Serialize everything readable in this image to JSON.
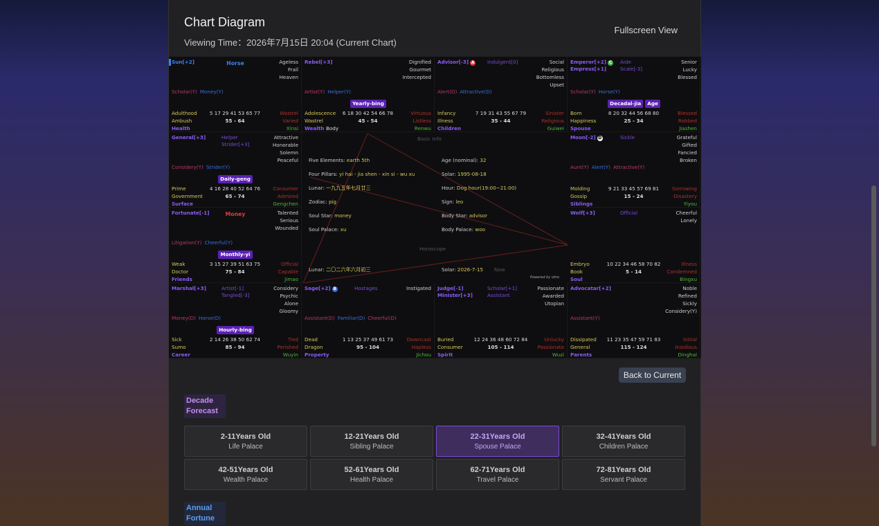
{
  "header": {
    "title": "Chart Diagram",
    "subtitle": "Viewing Time：2026年7月15日 20:04 (Current Chart)",
    "action": "Fullscreen View"
  },
  "chart": {
    "cells": [
      {
        "major": [
          "Sun[+2]"
        ],
        "center": "Horse",
        "adjectives": [
          "Ageless",
          "Frail",
          "Heaven"
        ],
        "yearly": [
          "Scholar(Y)",
          "Money(Y)"
        ],
        "stage": "Adulthood",
        "ages": "5 17 29 41 53 65 77",
        "stage_state": "Wastrel",
        "name": "Ambush",
        "range": "55 - 64",
        "state": "Varied",
        "palace": "Health",
        "stem": "Xinsi"
      },
      {
        "major": [
          "Rebel[+3]"
        ],
        "adjectives": [
          "Dignified",
          "Gourmet",
          "Intercepted"
        ],
        "yearly": [
          "Artist(Y)",
          "Helper(Y)"
        ],
        "tags": [
          "Yearly-bing"
        ],
        "stage": "Adolescence",
        "ages": "6 18 30 42 54 66 78",
        "stage_state": "Virtuous",
        "name": "Wastrel",
        "range": "45 - 54",
        "state": "Listless",
        "palace": "Wealth",
        "extra": "Body",
        "stem": "Renwu"
      },
      {
        "major": [
          {
            "name": "Advisor[-3]",
            "badge": "A"
          }
        ],
        "minor": [
          "Indulgent[0]"
        ],
        "adjectives": [
          "Social",
          "Religious",
          "Bottomless",
          "Upset"
        ],
        "yearly": [
          "Alert(D)",
          "Attractive(D)"
        ],
        "stage": "Infancy",
        "ages": "7 19 31 43 55 67 79",
        "stage_state": "Sinister",
        "name": "Illness",
        "range": "35 - 44",
        "state": "Religious",
        "palace": "Children",
        "stem": "Guiwei"
      },
      {
        "major": [
          {
            "name": "Emperor[+2]",
            "badge": "C"
          },
          "Empress[+1]"
        ],
        "minor": [
          "Aide",
          "Scale[-3]"
        ],
        "adjectives": [
          "Senior",
          "Lucky",
          "Blessed"
        ],
        "yearly": [
          "Scholar(Y)",
          "Horse(Y)"
        ],
        "tags": [
          "Decadal-jia",
          "Age"
        ],
        "stage": "Born",
        "ages": "8 20 32 44 56 68 80",
        "stage_state": "Blessed",
        "name": "Happiness",
        "range": "25 - 34",
        "state": "Robbed",
        "palace": "Spouse",
        "stem": "Jiashen"
      },
      {
        "major": [
          "General[+3]"
        ],
        "minor": [
          "Helper",
          "Strider[+3]"
        ],
        "adjectives": [
          "Attractive",
          "Honorable",
          "Solemn",
          "Peaceful"
        ],
        "yearly": [
          "Considery(Y)",
          "Strider(Y)"
        ],
        "tags": [
          "Daily-geng"
        ],
        "stage": "Prime",
        "ages": "4 16 28 40 52 64 76",
        "stage_state": "Consumer",
        "name": "Government",
        "range": "65 - 74",
        "state": "Admired",
        "palace": "Surface",
        "stem": "Gengchen"
      },
      {
        "major": [
          {
            "name": "Moon[-2]",
            "badge": "D"
          }
        ],
        "minor": [
          "Sickle"
        ],
        "adjectives": [
          "Grateful",
          "Gifted",
          "Fancied",
          "Broken"
        ],
        "yearly": [
          "Aunt(Y)",
          "Alert(Y)",
          "Attractive(Y)"
        ],
        "stage": "Molding",
        "ages": "9 21 33 45 57 69 81",
        "stage_state": "Sorrowing",
        "name": "Gossip",
        "range": "15 - 24",
        "state": "Disastery",
        "palace": "Siblings",
        "stem": "Yiyou"
      },
      {
        "major": [
          "Fortunate[-1]"
        ],
        "center": "Money",
        "adjectives": [
          "Talented",
          "Serious",
          "Wounded"
        ],
        "yearly": [
          "Litigation(Y)",
          "Cheerful(Y)"
        ],
        "tags": [
          "Monthly-yi"
        ],
        "stage": "Weak",
        "ages": "3 15 27 39 51 63 75",
        "stage_state": "Official",
        "name": "Doctor",
        "range": "75 - 84",
        "state": "Capable",
        "palace": "Friends",
        "stem": "Jimao"
      },
      {
        "major": [
          "Wolf[+3]"
        ],
        "minor": [
          "Official"
        ],
        "adjectives": [
          "Cheerful",
          "Lonely"
        ],
        "stage": "Embryo",
        "ages": "10 22 34 46 58 70 82",
        "stage_state": "Illness",
        "name": "Book",
        "range": "5 - 14",
        "state": "Condemned",
        "palace": "Soul",
        "stem": "Bingxu"
      },
      {
        "major": [
          "Marshal[+3]"
        ],
        "minor": [
          "Artist[-1]",
          "Tangled[-3]"
        ],
        "adjectives": [
          "Considery",
          "Psychic",
          "Alone",
          "Gloomy"
        ],
        "yearly": [
          "Money(D)",
          "Horse(D)"
        ],
        "tags": [
          "Hourly-bing"
        ],
        "stage": "Sick",
        "ages": "2 14 26 38 50 62 74",
        "stage_state": "Tied",
        "name": "Sumo",
        "range": "85 - 94",
        "state": "Perished",
        "palace": "Career",
        "stem": "Wuyin"
      },
      {
        "major": [
          {
            "name": "Sage[+2]",
            "badge": "B"
          }
        ],
        "minor": [
          "Hostages"
        ],
        "adjectives": [
          "Instigated"
        ],
        "yearly": [
          "Assistant(D)",
          "Familiar(D)",
          "Cheerful(D)"
        ],
        "stage": "Dead",
        "ages": "1 13 25 37 49 61 73",
        "stage_state": "Downcast",
        "name": "Dragon",
        "range": "95 - 104",
        "state": "Hapless",
        "palace": "Property",
        "stem": "Jichou"
      },
      {
        "major": [
          "Judge[-1]",
          "Minister[+3]"
        ],
        "minor": [
          "Scholar[+1]",
          "Assistant"
        ],
        "adjectives": [
          "Passionate",
          "Awarded",
          "Utopian"
        ],
        "stage": "Buried",
        "ages": "12 24 36 48 60 72 84",
        "stage_state": "Unlucky",
        "name": "Consumer",
        "range": "105 - 114",
        "state": "Passionate",
        "palace": "Spirit",
        "stem": "Wuzi"
      },
      {
        "major": [
          "Advocatar[+2]"
        ],
        "adjectives": [
          "Noble",
          "Refined",
          "Sickly",
          "Considery(Y)"
        ],
        "yearly": [
          "Assistant(Y)"
        ],
        "stage": "Dissipated",
        "ages": "11 23 35 47 59 71 83",
        "stage_state": "Initial",
        "name": "General",
        "range": "115 - 124",
        "state": "Insidious",
        "palace": "Parents",
        "stem": "Dinghai"
      }
    ],
    "center": {
      "title": "Basic Info",
      "info": [
        {
          "label": "Five Elements:",
          "value": "earth 5th"
        },
        {
          "label": "Age (nominal):",
          "value": "32"
        },
        {
          "label": "Four Pillars:",
          "value": "yi hai - jia shen - xin si - wu xu"
        },
        {
          "label": "Solar:",
          "value": "1995-08-18"
        },
        {
          "label": "Lunar:",
          "value": "一九九五年七月廿三"
        },
        {
          "label": "Hour:",
          "value": "Dog hour(19:00~21:00)"
        },
        {
          "label": "Zodiac:",
          "value": "pig"
        },
        {
          "label": "Sign:",
          "value": "leo"
        },
        {
          "label": "Soul Star:",
          "value": "money"
        },
        {
          "label": "Body Star:",
          "value": "advisor"
        },
        {
          "label": "Soul Palace:",
          "value": "xu"
        },
        {
          "label": "Body Palace:",
          "value": "woo"
        }
      ],
      "horoscope": "Horoscope",
      "horoscope_info": [
        {
          "label": "Lunar:",
          "value": "二〇二六年六月初三"
        },
        {
          "label": "Solar:",
          "value": "2026-7-15"
        }
      ],
      "now": "Now",
      "credit": "Powered by iztro"
    }
  },
  "back_button": "Back to Current",
  "decade": {
    "label": "Decade Forecast",
    "items": [
      {
        "age": "2-11Years Old",
        "palace": "Life Palace"
      },
      {
        "age": "12-21Years Old",
        "palace": "Sibling Palace"
      },
      {
        "age": "22-31Years Old",
        "palace": "Spouse Palace"
      },
      {
        "age": "32-41Years Old",
        "palace": "Children Palace"
      },
      {
        "age": "42-51Years Old",
        "palace": "Wealth Palace"
      },
      {
        "age": "52-61Years Old",
        "palace": "Health Palace"
      },
      {
        "age": "62-71Years Old",
        "palace": "Travel Palace"
      },
      {
        "age": "72-81Years Old",
        "palace": "Servant Palace"
      }
    ]
  },
  "annual": {
    "label": "Annual Fortune"
  }
}
